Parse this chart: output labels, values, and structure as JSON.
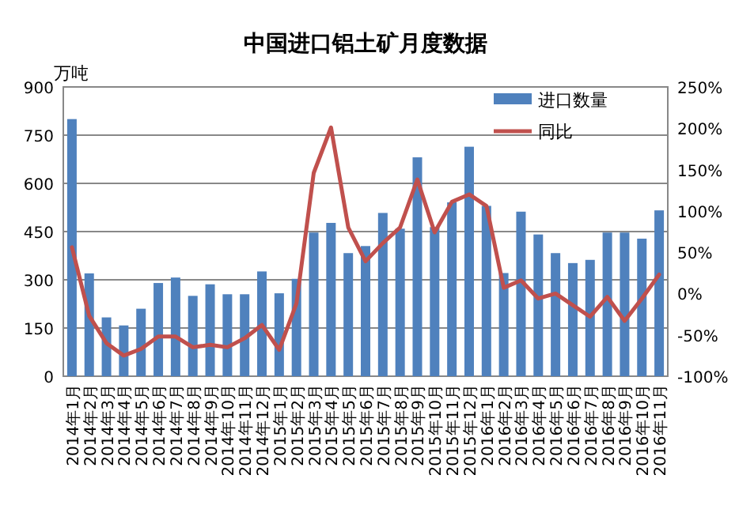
{
  "chart_data": {
    "type": "bar",
    "title": "中国进口铝土矿月度数据",
    "ylabel": "万吨",
    "categories": [
      "2014年1月",
      "2014年2月",
      "2014年3月",
      "2014年4月",
      "2014年5月",
      "2014年6月",
      "2014年7月",
      "2014年8月",
      "2014年9月",
      "2014年10月",
      "2014年11月",
      "2014年12月",
      "2015年1月",
      "2015年2月",
      "2015年3月",
      "2015年4月",
      "2015年5月",
      "2015年6月",
      "2015年7月",
      "2015年8月",
      "2015年9月",
      "2015年10月",
      "2015年11月",
      "2015年12月",
      "2016年1月",
      "2016年2月",
      "2016年3月",
      "2016年4月",
      "2016年5月",
      "2016年6月",
      "2016年7月",
      "2016年8月",
      "2016年9月",
      "2016年10月",
      "2016年11月"
    ],
    "series": [
      {
        "name": "进口数量",
        "color": "#4f81bd",
        "values": [
          800,
          320,
          183,
          158,
          210,
          290,
          307,
          250,
          286,
          255,
          255,
          326,
          258,
          303,
          447,
          477,
          383,
          405,
          508,
          459,
          681,
          464,
          541,
          714,
          530,
          321,
          512,
          441,
          383,
          352,
          362,
          447,
          447,
          428,
          516
        ]
      },
      {
        "name": "同比",
        "type": "line",
        "axis": "y2",
        "color": "#c0504d",
        "values": [
          56,
          -27,
          -60,
          -75,
          -67,
          -52,
          -52,
          -65,
          -62,
          -65,
          -54,
          -38,
          -68,
          -12,
          146,
          201,
          80,
          39,
          61,
          80,
          138,
          74,
          111,
          120,
          106,
          7,
          16,
          -6,
          0,
          -14,
          -28,
          -4,
          -33,
          -6,
          23
        ]
      }
    ],
    "ylim": [
      0,
      900
    ],
    "yticks": [
      0,
      150,
      300,
      450,
      600,
      750,
      900
    ],
    "y2lim": [
      -100,
      250
    ],
    "y2ticks": [
      {
        "value": -100,
        "label": "-100%"
      },
      {
        "value": -50,
        "label": "-50%"
      },
      {
        "value": 0,
        "label": "0%"
      },
      {
        "value": 50,
        "label": "50%"
      },
      {
        "value": 100,
        "label": "100%"
      },
      {
        "value": 150,
        "label": "150%"
      },
      {
        "value": 200,
        "label": "200%"
      },
      {
        "value": 250,
        "label": "250%"
      }
    ],
    "grid": "y",
    "legend": "top right",
    "marker": "none",
    "line_style": "solid"
  }
}
